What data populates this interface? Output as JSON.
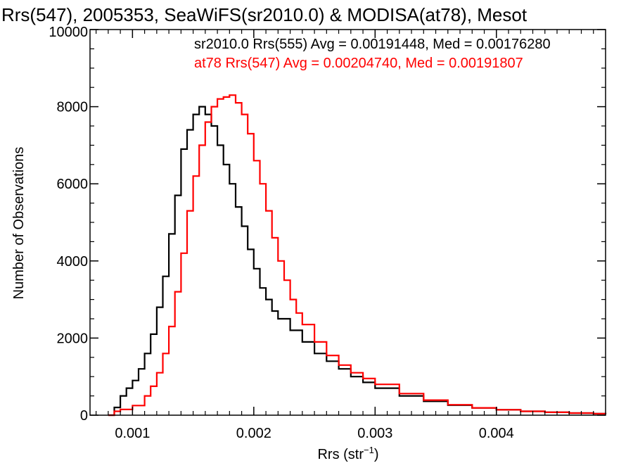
{
  "chart_data": {
    "type": "line",
    "title": "Rrs(547), 2005353, SeaWiFS(sr2010.0) & MODISA(at78), Mesot",
    "xlabel": "Rrs (str",
    "xlabel_sup": "−1",
    "xlabel_close": ")",
    "ylabel": "Number of Observations",
    "xlim": [
      0.00065,
      0.0049
    ],
    "ylim": [
      0,
      10000
    ],
    "x_ticks": [
      0.001,
      0.002,
      0.003,
      0.004
    ],
    "x_tick_labels": [
      "0.001",
      "0.002",
      "0.003",
      "0.004"
    ],
    "y_ticks": [
      0,
      2000,
      4000,
      6000,
      8000,
      10000
    ],
    "y_tick_labels": [
      "0",
      "2000",
      "4000",
      "6000",
      "8000",
      "10000"
    ],
    "grid": false,
    "legend_position": "top-right",
    "step_plot": true,
    "series": [
      {
        "name": "sr2010.0 Rrs(555) Avg = 0.00191448, Med = 0.00176280",
        "color": "#000000",
        "x": [
          0.0008,
          0.00083,
          0.00085,
          0.0009,
          0.00095,
          0.001,
          0.00105,
          0.0011,
          0.00115,
          0.0012,
          0.00125,
          0.0013,
          0.00135,
          0.0014,
          0.00145,
          0.0015,
          0.00155,
          0.0016,
          0.00165,
          0.0017,
          0.00175,
          0.0018,
          0.00185,
          0.0019,
          0.00195,
          0.002,
          0.00205,
          0.0021,
          0.00215,
          0.0022,
          0.0023,
          0.0024,
          0.0025,
          0.0026,
          0.0027,
          0.0028,
          0.0029,
          0.003,
          0.0032,
          0.0034,
          0.0036,
          0.0038,
          0.004,
          0.0042,
          0.0044,
          0.0046,
          0.0048,
          0.0049
        ],
        "y": [
          0,
          0,
          200,
          500,
          700,
          900,
          1200,
          1600,
          2100,
          2800,
          3600,
          4700,
          5700,
          6900,
          7400,
          7800,
          8000,
          7800,
          7500,
          7000,
          6500,
          6000,
          5400,
          4900,
          4300,
          3800,
          3300,
          3000,
          2700,
          2500,
          2200,
          1900,
          1600,
          1400,
          1200,
          1000,
          850,
          700,
          500,
          360,
          260,
          190,
          140,
          100,
          75,
          55,
          40,
          30
        ]
      },
      {
        "name": "at78 Rrs(547) Avg = 0.00204740, Med = 0.00191807",
        "color": "#ff0000",
        "x": [
          0.0008,
          0.00083,
          0.00085,
          0.0009,
          0.001,
          0.0011,
          0.00115,
          0.0012,
          0.00125,
          0.0013,
          0.00135,
          0.0014,
          0.00145,
          0.0015,
          0.00155,
          0.0016,
          0.00165,
          0.0017,
          0.00175,
          0.0018,
          0.00185,
          0.0019,
          0.00195,
          0.002,
          0.00205,
          0.0021,
          0.00215,
          0.0022,
          0.00225,
          0.0023,
          0.00235,
          0.0024,
          0.0025,
          0.0026,
          0.0027,
          0.0028,
          0.0029,
          0.003,
          0.0032,
          0.0034,
          0.0036,
          0.0038,
          0.004,
          0.0042,
          0.0044,
          0.0046,
          0.0048,
          0.0049
        ],
        "y": [
          0,
          0,
          100,
          150,
          250,
          500,
          750,
          1100,
          1600,
          2300,
          3200,
          4200,
          5300,
          6200,
          7000,
          7600,
          8000,
          8200,
          8250,
          8300,
          8100,
          7800,
          7300,
          6600,
          6000,
          5300,
          4600,
          4000,
          3500,
          3000,
          2650,
          2350,
          1900,
          1550,
          1300,
          1100,
          950,
          800,
          560,
          390,
          270,
          190,
          140,
          100,
          75,
          55,
          40,
          30
        ]
      }
    ]
  }
}
